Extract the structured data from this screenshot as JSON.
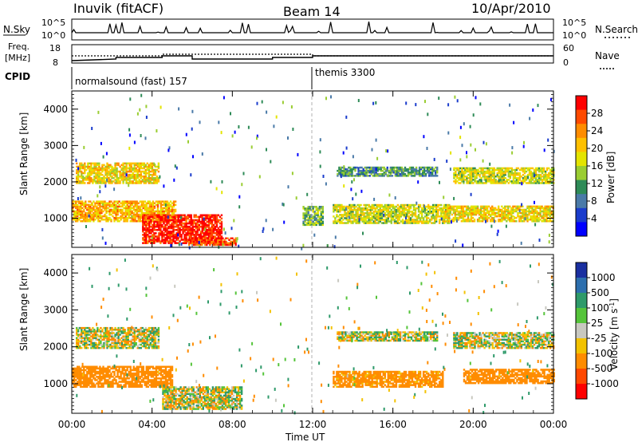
{
  "header": {
    "station": "Inuvik (fitACF)",
    "beam": "Beam 14",
    "date": "10/Apr/2010"
  },
  "strip_nsky": {
    "left_label": "N.Sky",
    "right_label": "N.Search",
    "left_ticks": [
      "10^5",
      "10^0"
    ],
    "right_ticks": [
      "10^5",
      "10^0"
    ]
  },
  "strip_freq": {
    "left_label_line1": "Freq.",
    "left_label_line2": "[MHz]",
    "right_label": "Nave",
    "left_ticks": [
      "18",
      "8"
    ],
    "right_ticks": [
      "60",
      "0"
    ]
  },
  "cpid": {
    "label": "CPID",
    "segments": [
      {
        "name": "normalsound (fast) 157",
        "start_hour": 0
      },
      {
        "name": "themis 3300",
        "start_hour": 12
      }
    ]
  },
  "colorbar_power": {
    "label": "Power [dB]",
    "ticks": [
      "28",
      "24",
      "20",
      "16",
      "12",
      "8",
      "4"
    ],
    "colors": [
      "#ff0000",
      "#ff4a00",
      "#ff8c00",
      "#ffc000",
      "#e4e400",
      "#9acd32",
      "#2e8b57",
      "#4a7aa8",
      "#1a3ccc",
      "#0000ff"
    ]
  },
  "colorbar_velocity": {
    "label": "Velocity [m s",
    "label_sup": "-1",
    "label_end": "]",
    "ticks": [
      "1000",
      "500",
      "100",
      "25",
      "-25",
      "-100",
      "-500",
      "-1000"
    ],
    "colors": [
      "#1a2fa0",
      "#2d6fae",
      "#2e9a6a",
      "#55c43a",
      "#c8c8c0",
      "#f3c200",
      "#ff8c00",
      "#ff4800",
      "#ff0000"
    ]
  },
  "chart_data": {
    "type": "heatmap",
    "title": "",
    "xlabel": "Time UT",
    "x_ticks": [
      "00:00",
      "04:00",
      "08:00",
      "12:00",
      "16:00",
      "20:00",
      "00:00"
    ],
    "xlim_hours": [
      0,
      24
    ],
    "panels": [
      {
        "name": "power",
        "ylabel": "Slant Range [km]",
        "ylim": [
          200,
          4500
        ],
        "y_ticks": [
          "1000",
          "2000",
          "3000",
          "4000"
        ],
        "zlabel": "Power [dB]",
        "zlim": [
          0,
          30
        ],
        "regions": [
          {
            "t": [
              0.2,
              4.3
            ],
            "r": [
              1950,
              2500
            ],
            "level": 18
          },
          {
            "t": [
              0.0,
              5.2
            ],
            "r": [
              900,
              1450
            ],
            "level": 20
          },
          {
            "t": [
              3.5,
              7.5
            ],
            "r": [
              300,
              1100
            ],
            "level": 28
          },
          {
            "t": [
              5.8,
              8.2
            ],
            "r": [
              250,
              450
            ],
            "level": 26
          },
          {
            "t": [
              13.2,
              18.2
            ],
            "r": [
              2150,
              2400
            ],
            "level": 10
          },
          {
            "t": [
              13.0,
              18.8
            ],
            "r": [
              850,
              1350
            ],
            "level": 16
          },
          {
            "t": [
              19.0,
              24.0
            ],
            "r": [
              1950,
              2400
            ],
            "level": 16
          },
          {
            "t": [
              18.5,
              24.0
            ],
            "r": [
              900,
              1350
            ],
            "level": 18
          },
          {
            "t": [
              11.5,
              12.5
            ],
            "r": [
              800,
              1300
            ],
            "level": 12
          }
        ]
      },
      {
        "name": "velocity",
        "ylabel": "Slant Range [km]",
        "ylim": [
          200,
          4500
        ],
        "y_ticks": [
          "1000",
          "2000",
          "3000",
          "4000"
        ],
        "zlabel": "Velocity [m s^-1]",
        "zlim": [
          -1000,
          1000
        ],
        "regions": [
          {
            "t": [
              0.2,
              4.3
            ],
            "r": [
              1950,
              2500
            ],
            "level": 0
          },
          {
            "t": [
              0.0,
              5.0
            ],
            "r": [
              900,
              1450
            ],
            "level": -300
          },
          {
            "t": [
              4.5,
              8.5
            ],
            "r": [
              300,
              900
            ],
            "level": 0
          },
          {
            "t": [
              13.2,
              18.2
            ],
            "r": [
              2150,
              2400
            ],
            "level": 0
          },
          {
            "t": [
              13.0,
              18.5
            ],
            "r": [
              900,
              1350
            ],
            "level": -250
          },
          {
            "t": [
              19.0,
              24.0
            ],
            "r": [
              1950,
              2400
            ],
            "level": 0
          },
          {
            "t": [
              19.5,
              24.0
            ],
            "r": [
              1000,
              1400
            ],
            "level": -300
          }
        ]
      }
    ]
  }
}
